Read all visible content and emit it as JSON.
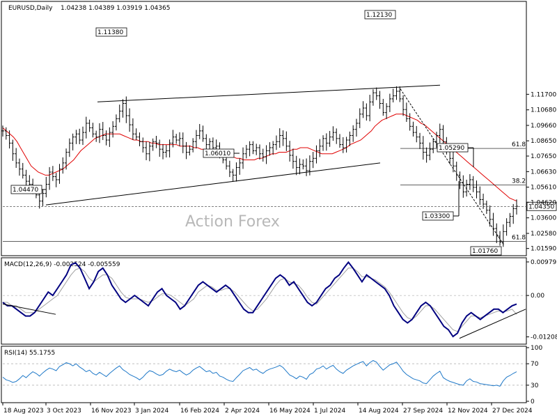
{
  "chart_data": [
    {
      "type": "line",
      "panel": "price",
      "title": "EURUSD,Daily",
      "ohlc": "1.04238 1.04389 1.03919 1.04365",
      "watermark": "Action Forex",
      "ylim": [
        1.0121,
        1.177
      ],
      "yticks": [
        "1.11700",
        "1.10680",
        "1.09660",
        "1.08650",
        "1.07650",
        "1.06630",
        "1.05610",
        "1.04620",
        "1.03600",
        "1.02580",
        "1.01590"
      ],
      "current_price": {
        "value": 1.0435,
        "label": "1.04350"
      },
      "xticks": [
        "18 Aug 2023",
        "3 Oct 2023",
        "16 Nov 2023",
        "3 Jan 2024",
        "16 Feb 2024",
        "2 Apr 2024",
        "16 May 2024",
        "1 Jul 2024",
        "14 Aug 2024",
        "27 Sep 2024",
        "12 Nov 2024",
        "27 Dec 2024"
      ],
      "annotations": [
        {
          "label": "1.11380",
          "value": 1.1138
        },
        {
          "label": "1.12130",
          "value": 1.1213
        },
        {
          "label": "1.06010",
          "value": 1.0601
        },
        {
          "label": "1.04470",
          "value": 1.0447
        },
        {
          "label": "1.05290",
          "value": 1.0529
        },
        {
          "label": "1.03300",
          "value": 1.033
        },
        {
          "label": "1.01760",
          "value": 1.0176
        }
      ],
      "fib_levels": [
        {
          "label": "61.8",
          "value": 1.0815
        },
        {
          "label": "38.2",
          "value": 1.0575
        },
        {
          "label": "61.8",
          "value": 1.0205
        }
      ],
      "series": [
        {
          "type": "ohlc",
          "color": "#000000",
          "values": [
            1.093,
            1.09,
            1.085,
            1.078,
            1.072,
            1.068,
            1.064,
            1.06,
            1.058,
            1.055,
            1.051,
            1.047,
            1.052,
            1.058,
            1.066,
            1.063,
            1.061,
            1.068,
            1.072,
            1.079,
            1.085,
            1.089,
            1.091,
            1.087,
            1.092,
            1.098,
            1.095,
            1.091,
            1.089,
            1.094,
            1.09,
            1.087,
            1.092,
            1.096,
            1.101,
            1.106,
            1.111,
            1.103,
            1.097,
            1.091,
            1.089,
            1.086,
            1.082,
            1.078,
            1.083,
            1.086,
            1.085,
            1.081,
            1.079,
            1.08,
            1.085,
            1.089,
            1.087,
            1.088,
            1.083,
            1.079,
            1.081,
            1.086,
            1.09,
            1.093,
            1.088,
            1.084,
            1.086,
            1.082,
            1.083,
            1.077,
            1.074,
            1.07,
            1.066,
            1.064,
            1.069,
            1.072,
            1.078,
            1.081,
            1.084,
            1.08,
            1.082,
            1.078,
            1.076,
            1.08,
            1.082,
            1.084,
            1.086,
            1.09,
            1.088,
            1.083,
            1.077,
            1.073,
            1.069,
            1.071,
            1.07,
            1.067,
            1.073,
            1.075,
            1.08,
            1.083,
            1.088,
            1.085,
            1.089,
            1.092,
            1.088,
            1.084,
            1.082,
            1.087,
            1.09,
            1.094,
            1.098,
            1.104,
            1.108,
            1.103,
            1.112,
            1.118,
            1.116,
            1.111,
            1.105,
            1.109,
            1.114,
            1.116,
            1.119,
            1.114,
            1.107,
            1.101,
            1.096,
            1.092,
            1.089,
            1.085,
            1.079,
            1.077,
            1.081,
            1.086,
            1.09,
            1.094,
            1.086,
            1.08,
            1.075,
            1.07,
            1.064,
            1.059,
            1.053,
            1.058,
            1.061,
            1.056,
            1.053,
            1.048,
            1.045,
            1.041,
            1.035,
            1.029,
            1.024,
            1.02,
            1.027,
            1.033,
            1.037,
            1.042,
            1.0436
          ]
        },
        {
          "type": "line",
          "name": "",
          "color": "#e00000",
          "values": [
            1.095,
            1.093,
            1.091,
            1.089,
            1.086,
            1.082,
            1.078,
            1.074,
            1.07,
            1.068,
            1.066,
            1.065,
            1.064,
            1.064,
            1.065,
            1.066,
            1.067,
            1.068,
            1.07,
            1.072,
            1.074,
            1.077,
            1.08,
            1.082,
            1.084,
            1.086,
            1.088,
            1.089,
            1.09,
            1.091,
            1.091,
            1.091,
            1.091,
            1.091,
            1.09,
            1.089,
            1.088,
            1.087,
            1.087,
            1.086,
            1.086,
            1.086,
            1.085,
            1.085,
            1.084,
            1.084,
            1.084,
            1.084,
            1.084,
            1.084,
            1.083,
            1.083,
            1.083,
            1.083,
            1.082,
            1.082,
            1.081,
            1.081,
            1.08,
            1.08,
            1.08,
            1.079,
            1.079,
            1.078,
            1.077,
            1.076,
            1.075,
            1.075,
            1.074,
            1.074,
            1.074,
            1.074,
            1.075,
            1.075,
            1.076,
            1.077,
            1.078,
            1.078,
            1.079,
            1.079,
            1.079,
            1.08,
            1.081,
            1.081,
            1.082,
            1.082,
            1.082,
            1.081,
            1.08,
            1.079,
            1.078,
            1.078,
            1.078,
            1.078,
            1.079,
            1.08,
            1.081,
            1.082,
            1.084,
            1.085,
            1.086,
            1.087,
            1.089,
            1.091,
            1.093,
            1.096,
            1.098,
            1.1,
            1.101,
            1.102,
            1.103,
            1.104,
            1.104,
            1.104,
            1.103,
            1.102,
            1.101,
            1.1,
            1.098,
            1.097,
            1.095,
            1.093,
            1.091,
            1.089,
            1.087,
            1.085,
            1.083,
            1.081,
            1.079,
            1.077,
            1.075,
            1.073,
            1.071,
            1.069,
            1.067,
            1.065,
            1.063,
            1.061,
            1.059,
            1.057,
            1.055,
            1.053,
            1.051,
            1.049,
            1.048,
            1.047
          ]
        }
      ]
    },
    {
      "type": "line",
      "panel": "macd",
      "title": "MACD(12,26,9) -0.002524 -0.005559",
      "ylim": [
        -0.0138,
        0.0106
      ],
      "yticks": [
        "0.009795",
        "0.00",
        "-0.012081"
      ],
      "series": [
        {
          "name": "",
          "color": "#000080",
          "values": [
            -0.002,
            -0.003,
            -0.003,
            -0.004,
            -0.005,
            -0.006,
            -0.006,
            -0.005,
            -0.003,
            -0.001,
            0.001,
            0.0,
            0.002,
            0.004,
            0.006,
            0.009,
            0.0095,
            0.008,
            0.005,
            0.002,
            0.004,
            0.007,
            0.008,
            0.006,
            0.003,
            0.001,
            -0.001,
            -0.002,
            -0.001,
            0.0,
            -0.001,
            -0.002,
            -0.003,
            -0.001,
            0.001,
            0.002,
            0.0,
            -0.001,
            -0.002,
            -0.004,
            -0.003,
            -0.001,
            0.001,
            0.003,
            0.004,
            0.003,
            0.002,
            0.001,
            0.002,
            0.003,
            0.002,
            0.0,
            -0.002,
            -0.004,
            -0.005,
            -0.005,
            -0.003,
            -0.001,
            0.001,
            0.003,
            0.005,
            0.006,
            0.005,
            0.003,
            0.004,
            0.002,
            0.0,
            -0.002,
            -0.003,
            -0.002,
            0.0,
            0.002,
            0.003,
            0.005,
            0.006,
            0.008,
            0.0097,
            0.008,
            0.006,
            0.004,
            0.006,
            0.005,
            0.004,
            0.003,
            0.002,
            0.0,
            -0.003,
            -0.005,
            -0.007,
            -0.008,
            -0.007,
            -0.005,
            -0.003,
            -0.002,
            -0.003,
            -0.005,
            -0.007,
            -0.009,
            -0.01,
            -0.012,
            -0.011,
            -0.008,
            -0.006,
            -0.005,
            -0.006,
            -0.007,
            -0.006,
            -0.005,
            -0.004,
            -0.004,
            -0.005,
            -0.004,
            -0.003,
            -0.0025
          ]
        },
        {
          "name": "",
          "color": "#a0a0a0",
          "values": [
            -0.002,
            -0.002,
            -0.003,
            -0.003,
            -0.004,
            -0.005,
            -0.005,
            -0.005,
            -0.004,
            -0.003,
            -0.002,
            -0.001,
            0.0,
            0.002,
            0.004,
            0.006,
            0.0075,
            0.008,
            0.007,
            0.005,
            0.004,
            0.005,
            0.006,
            0.006,
            0.005,
            0.003,
            0.001,
            -0.0005,
            -0.001,
            -0.001,
            -0.001,
            -0.0015,
            -0.002,
            -0.0015,
            -0.0005,
            0.0005,
            0.0005,
            0.0,
            -0.001,
            -0.002,
            -0.003,
            -0.002,
            -0.001,
            0.001,
            0.002,
            0.003,
            0.0025,
            0.0015,
            0.0015,
            0.002,
            0.002,
            0.001,
            -0.0005,
            -0.002,
            -0.0035,
            -0.0045,
            -0.004,
            -0.0025,
            -0.001,
            0.001,
            0.003,
            0.0045,
            0.005,
            0.004,
            0.0035,
            0.003,
            0.0015,
            -0.0005,
            -0.002,
            -0.0025,
            -0.001,
            0.0005,
            0.002,
            0.0035,
            0.005,
            0.0065,
            0.008,
            0.008,
            0.007,
            0.0055,
            0.0055,
            0.005,
            0.0045,
            0.0035,
            0.0025,
            0.001,
            -0.001,
            -0.003,
            -0.005,
            -0.0065,
            -0.007,
            -0.006,
            -0.0045,
            -0.003,
            -0.003,
            -0.004,
            -0.0055,
            -0.007,
            -0.0085,
            -0.01,
            -0.0105,
            -0.009,
            -0.0075,
            -0.006,
            -0.006,
            -0.0065,
            -0.006,
            -0.0055,
            -0.005,
            -0.0045,
            -0.0048,
            -0.0045,
            -0.004,
            -0.0055
          ]
        }
      ]
    },
    {
      "type": "line",
      "panel": "rsi",
      "title": "RSI(14) 55.1755",
      "ylim": [
        0,
        100
      ],
      "yticks": [
        "100",
        "70",
        "30",
        "0"
      ],
      "levels": [
        70,
        30
      ],
      "series": [
        {
          "name": "",
          "color": "#1e78c8",
          "values": [
            45,
            40,
            38,
            35,
            37,
            42,
            48,
            44,
            50,
            55,
            52,
            47,
            53,
            58,
            62,
            60,
            57,
            65,
            68,
            72,
            70,
            66,
            70,
            64,
            60,
            55,
            58,
            52,
            49,
            54,
            50,
            46,
            52,
            57,
            62,
            66,
            59,
            55,
            50,
            47,
            44,
            40,
            45,
            52,
            57,
            55,
            51,
            48,
            50,
            56,
            60,
            57,
            55,
            58,
            53,
            49,
            52,
            58,
            62,
            65,
            60,
            55,
            57,
            52,
            54,
            47,
            45,
            41,
            38,
            37,
            44,
            50,
            57,
            60,
            63,
            58,
            60,
            55,
            52,
            57,
            60,
            62,
            64,
            67,
            63,
            56,
            49,
            46,
            42,
            47,
            45,
            41,
            50,
            53,
            60,
            62,
            66,
            60,
            64,
            67,
            60,
            55,
            52,
            58,
            62,
            66,
            69,
            72,
            74,
            66,
            72,
            76,
            73,
            65,
            58,
            63,
            68,
            70,
            73,
            65,
            56,
            50,
            46,
            42,
            40,
            38,
            34,
            33,
            40,
            47,
            52,
            56,
            44,
            40,
            37,
            35,
            33,
            31,
            30,
            38,
            42,
            37,
            36,
            33,
            32,
            31,
            30,
            29,
            30,
            28,
            38,
            45,
            48,
            52,
            55
          ]
        }
      ]
    }
  ]
}
